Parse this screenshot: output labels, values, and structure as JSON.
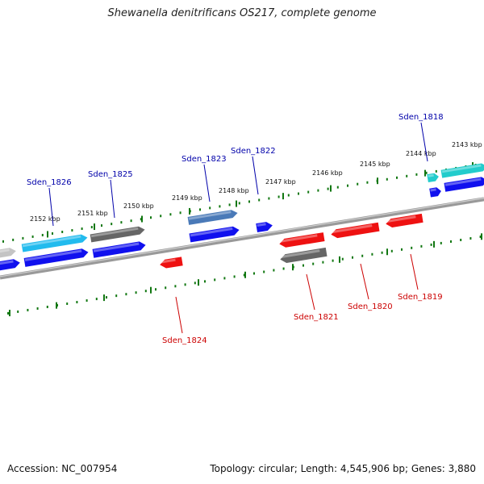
{
  "title": "Shewanella denitrificans OS217, complete genome",
  "footer": {
    "accession": "Accession: NC_007954",
    "summary": "Topology: circular; Length: 4,545,906 bp; Genes: 3,880"
  },
  "colors": {
    "backbone": "#888888",
    "tick": "#117711",
    "forward_label": "#0000aa",
    "reverse_label": "#cc0000",
    "blue": "#1010ee",
    "cyan": "#22bbee",
    "teal": "#22cccc",
    "gray": "#666666",
    "lightgray": "#c4c4c4",
    "steel": "#4a7ab8",
    "red": "#ee1111"
  },
  "ticks": [
    {
      "kbp": 2152,
      "label": "2152 kbp"
    },
    {
      "kbp": 2151,
      "label": "2151 kbp"
    },
    {
      "kbp": 2150,
      "label": "2150 kbp"
    },
    {
      "kbp": 2149,
      "label": "2149 kbp"
    },
    {
      "kbp": 2148,
      "label": "2148 kbp"
    },
    {
      "kbp": 2147,
      "label": "2147 kbp"
    },
    {
      "kbp": 2146,
      "label": "2146 kbp"
    },
    {
      "kbp": 2145,
      "label": "2145 kbp"
    },
    {
      "kbp": 2144,
      "label": "2144 kbp"
    },
    {
      "kbp": 2143,
      "label": "2143 kbp"
    }
  ],
  "genes": [
    {
      "name": "Sden_1826",
      "strand": "forward",
      "labeled": true
    },
    {
      "name": "Sden_1825",
      "strand": "forward",
      "labeled": true
    },
    {
      "name": "Sden_1824",
      "strand": "reverse",
      "labeled": true
    },
    {
      "name": "Sden_1823",
      "strand": "forward",
      "labeled": true
    },
    {
      "name": "Sden_1822",
      "strand": "forward",
      "labeled": true
    },
    {
      "name": "Sden_1821",
      "strand": "reverse",
      "labeled": true
    },
    {
      "name": "Sden_1820",
      "strand": "reverse",
      "labeled": true
    },
    {
      "name": "Sden_1819",
      "strand": "reverse",
      "labeled": true
    },
    {
      "name": "Sden_1818",
      "strand": "forward",
      "labeled": true
    }
  ]
}
